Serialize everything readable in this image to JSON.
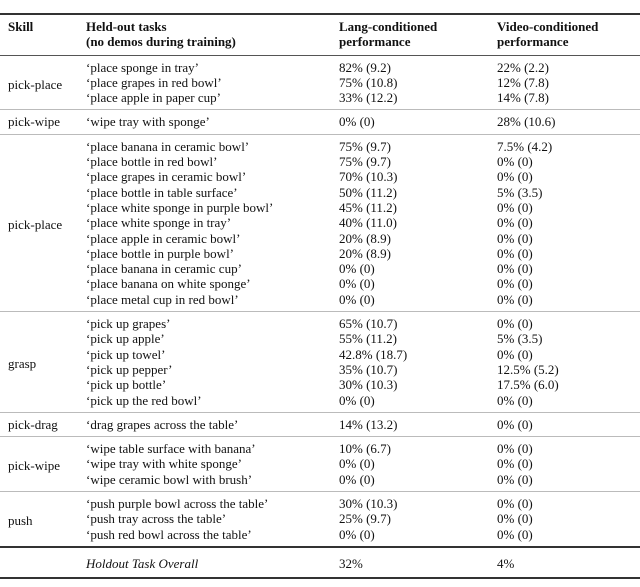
{
  "header": {
    "skill": "Skill",
    "tasks_line1": "Held-out tasks",
    "tasks_line2": "(no demos during training)",
    "lang_line1": "Lang-conditioned",
    "lang_line2": "performance",
    "video_line1": "Video-conditioned",
    "video_line2": "performance"
  },
  "groups": [
    {
      "skill": "pick-place",
      "rows": [
        [
          "‘place sponge in tray’",
          "82% (9.2)",
          "22% (2.2)"
        ],
        [
          "‘place grapes in red bowl’",
          "75% (10.8)",
          "12% (7.8)"
        ],
        [
          "‘place apple in paper cup’",
          "33% (12.2)",
          "14% (7.8)"
        ]
      ]
    },
    {
      "skill": "pick-wipe",
      "rows": [
        [
          "‘wipe tray with sponge’",
          "0% (0)",
          "28% (10.6)"
        ]
      ]
    },
    {
      "skill": "pick-place",
      "rows": [
        [
          "‘place banana in ceramic bowl’",
          "75% (9.7)",
          "7.5% (4.2)"
        ],
        [
          "‘place bottle in red bowl’",
          "75% (9.7)",
          "0% (0)"
        ],
        [
          "‘place grapes in ceramic bowl’",
          "70% (10.3)",
          "0% (0)"
        ],
        [
          "‘place bottle in table surface’",
          "50% (11.2)",
          "5% (3.5)"
        ],
        [
          "‘place white sponge in purple bowl’",
          "45% (11.2)",
          "0% (0)"
        ],
        [
          "‘place white sponge in tray’",
          "40% (11.0)",
          "0% (0)"
        ],
        [
          "‘place apple in ceramic bowl’",
          "20% (8.9)",
          "0% (0)"
        ],
        [
          "‘place bottle in purple bowl’",
          "20% (8.9)",
          "0% (0)"
        ],
        [
          "‘place banana in ceramic cup’",
          "0% (0)",
          "0% (0)"
        ],
        [
          "‘place banana on white sponge’",
          "0% (0)",
          "0% (0)"
        ],
        [
          "‘place metal cup in red bowl’",
          "0% (0)",
          "0% (0)"
        ]
      ]
    },
    {
      "skill": "grasp",
      "rows": [
        [
          "‘pick up grapes’",
          "65% (10.7)",
          "0% (0)"
        ],
        [
          "‘pick up apple’",
          "55% (11.2)",
          "5% (3.5)"
        ],
        [
          "‘pick up towel’",
          "42.8% (18.7)",
          "0% (0)"
        ],
        [
          "‘pick up pepper’",
          "35% (10.7)",
          "12.5% (5.2)"
        ],
        [
          "‘pick up bottle’",
          "30% (10.3)",
          "17.5% (6.0)"
        ],
        [
          "‘pick up the red bowl’",
          "0% (0)",
          "0% (0)"
        ]
      ]
    },
    {
      "skill": "pick-drag",
      "rows": [
        [
          "‘drag grapes across the table’",
          "14% (13.2)",
          "0% (0)"
        ]
      ]
    },
    {
      "skill": "pick-wipe",
      "rows": [
        [
          "‘wipe table surface with banana’",
          "10% (6.7)",
          "0% (0)"
        ],
        [
          "‘wipe tray with white sponge’",
          "0% (0)",
          "0% (0)"
        ],
        [
          "‘wipe ceramic bowl with brush’",
          "0% (0)",
          "0% (0)"
        ]
      ]
    },
    {
      "skill": "push",
      "rows": [
        [
          "‘push purple bowl across the table’",
          "30% (10.3)",
          "0% (0)"
        ],
        [
          "‘push tray across the table’",
          "25% (9.7)",
          "0% (0)"
        ],
        [
          "‘push red bowl across the table’",
          "0% (0)",
          "0% (0)"
        ]
      ]
    }
  ],
  "overall": {
    "label": "Holdout Task Overall",
    "lang": "32%",
    "video": "4%"
  }
}
